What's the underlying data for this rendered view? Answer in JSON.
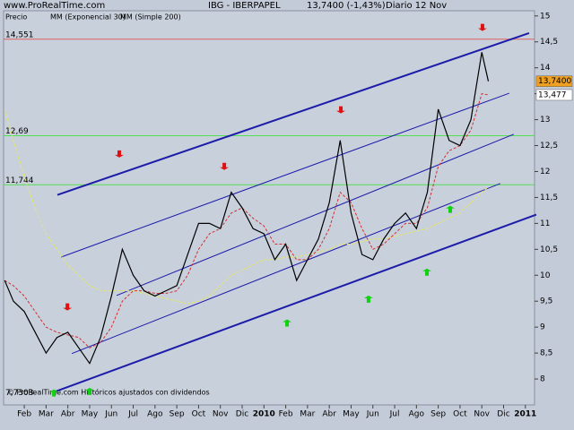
{
  "chart_data": {
    "type": "line",
    "site": "www.ProRealTime.com",
    "title": "IBG - IBERPAPEL",
    "quote": "13,7400 (-1,43%)",
    "period": "Diario  12 Nov",
    "footer": "© ProRealTime.com Históricos ajustados con dividendos",
    "legend_label": "Precio",
    "xlim": [
      -0.95,
      23.42
    ],
    "ylim": [
      7.5,
      15.1
    ],
    "xticks": [
      {
        "value": 0,
        "label": "Feb"
      },
      {
        "value": 1,
        "label": "Mar"
      },
      {
        "value": 2,
        "label": "Abr"
      },
      {
        "value": 3,
        "label": "May"
      },
      {
        "value": 4,
        "label": "Jun"
      },
      {
        "value": 5,
        "label": "Jul"
      },
      {
        "value": 6,
        "label": "Ago"
      },
      {
        "value": 7,
        "label": "Sep"
      },
      {
        "value": 8,
        "label": "Oct"
      },
      {
        "value": 9,
        "label": "Nov"
      },
      {
        "value": 10,
        "label": "Dic"
      },
      {
        "value": 11,
        "label": "2010"
      },
      {
        "value": 12,
        "label": "Feb"
      },
      {
        "value": 13,
        "label": "Mar"
      },
      {
        "value": 14,
        "label": "Abr"
      },
      {
        "value": 15,
        "label": "May"
      },
      {
        "value": 16,
        "label": "Jun"
      },
      {
        "value": 17,
        "label": "Jul"
      },
      {
        "value": 18,
        "label": "Ago"
      },
      {
        "value": 19,
        "label": "Sep"
      },
      {
        "value": 20,
        "label": "Oct"
      },
      {
        "value": 21,
        "label": "Nov"
      },
      {
        "value": 22,
        "label": "Dic"
      },
      {
        "value": 23,
        "label": "2011"
      }
    ],
    "yticks": [
      {
        "value": 15,
        "label": "15"
      },
      {
        "value": 14.5,
        "label": "14,5"
      },
      {
        "value": 14,
        "label": "14"
      },
      {
        "value": 13.5,
        "label": "13,5"
      },
      {
        "value": 13,
        "label": "13"
      },
      {
        "value": 12.5,
        "label": "12,5"
      },
      {
        "value": 12,
        "label": "12"
      },
      {
        "value": 11.5,
        "label": "11,5"
      },
      {
        "value": 11,
        "label": "11"
      },
      {
        "value": 10.5,
        "label": "10,5"
      },
      {
        "value": 10,
        "label": "10"
      },
      {
        "value": 9.5,
        "label": "9,5"
      },
      {
        "value": 9,
        "label": "9"
      },
      {
        "value": 8.5,
        "label": "8,5"
      },
      {
        "value": 8,
        "label": "8"
      }
    ],
    "x": [
      -0.9,
      -0.5,
      0,
      0.5,
      1,
      1.5,
      2,
      2.5,
      3,
      3.5,
      4,
      4.5,
      5,
      5.5,
      6,
      6.5,
      7,
      7.5,
      8,
      8.5,
      9,
      9.5,
      10,
      10.5,
      11,
      11.5,
      12,
      12.5,
      13,
      13.5,
      14,
      14.5,
      15,
      15.5,
      16,
      16.5,
      17,
      17.5,
      18,
      18.5,
      19,
      19.5,
      20,
      20.5,
      21,
      21.3
    ],
    "series": [
      {
        "name": "MM (Simple 200)",
        "color": "#e8e85a",
        "dash": true,
        "values": [
          13.2,
          12.6,
          11.9,
          11.3,
          10.8,
          10.5,
          10.2,
          10.0,
          9.8,
          9.7,
          9.7,
          9.7,
          9.7,
          9.65,
          9.6,
          9.55,
          9.5,
          9.45,
          9.5,
          9.6,
          9.8,
          10.0,
          10.1,
          10.2,
          10.3,
          10.3,
          10.35,
          10.35,
          10.4,
          10.45,
          10.5,
          10.6,
          10.6,
          10.65,
          10.7,
          10.7,
          10.75,
          10.8,
          10.85,
          10.9,
          11.0,
          11.1,
          11.2,
          11.4,
          11.6,
          11.7
        ]
      },
      {
        "name": "MM (Exponencial 30)",
        "color": "#d03030",
        "dash": true,
        "values": [
          9.9,
          9.8,
          9.6,
          9.3,
          9.0,
          8.9,
          8.85,
          8.8,
          8.6,
          8.7,
          9.0,
          9.5,
          9.7,
          9.7,
          9.65,
          9.65,
          9.7,
          10.0,
          10.5,
          10.8,
          10.9,
          11.2,
          11.3,
          11.1,
          10.95,
          10.6,
          10.6,
          10.3,
          10.3,
          10.5,
          10.9,
          11.6,
          11.4,
          10.9,
          10.5,
          10.6,
          10.8,
          11.0,
          11.0,
          11.3,
          12.1,
          12.4,
          12.5,
          12.8,
          13.5,
          13.477
        ]
      },
      {
        "name": "IBG",
        "color": "#000000",
        "dash": false,
        "values": [
          9.9,
          9.5,
          9.3,
          8.9,
          8.5,
          8.8,
          8.9,
          8.6,
          8.3,
          8.8,
          9.6,
          10.5,
          10.0,
          9.7,
          9.6,
          9.7,
          9.8,
          10.4,
          11.0,
          11.0,
          10.9,
          11.6,
          11.3,
          10.9,
          10.8,
          10.3,
          10.6,
          9.9,
          10.3,
          10.7,
          11.4,
          12.6,
          11.2,
          10.4,
          10.3,
          10.7,
          11.0,
          11.2,
          10.9,
          11.6,
          13.2,
          12.6,
          12.5,
          13.0,
          14.3,
          13.74
        ]
      }
    ],
    "channels": [
      {
        "x": [
          1.52,
          23.17
        ],
        "y": [
          11.55,
          14.67
        ],
        "color": "#1c1ca8",
        "width": 2
      },
      {
        "x": [
          1.69,
          22.26
        ],
        "y": [
          10.35,
          13.51
        ],
        "color": "#1c1ca8",
        "width": 1
      },
      {
        "x": [
          4.24,
          22.47
        ],
        "y": [
          9.61,
          12.72
        ],
        "color": "#1c1ca8",
        "width": 1
      },
      {
        "x": [
          2.18,
          21.85
        ],
        "y": [
          8.49,
          11.77
        ],
        "color": "#1c1ca8",
        "width": 1
      },
      {
        "x": [
          1.44,
          23.5
        ],
        "y": [
          7.76,
          11.17
        ],
        "color": "#1c1ca8",
        "width": 2
      }
    ],
    "levels": [
      {
        "value": 14.551,
        "label": "14,551",
        "color": "#e06060"
      },
      {
        "value": 12.69,
        "label": "12,69",
        "color": "#50e050"
      },
      {
        "value": 11.744,
        "label": "11,744",
        "color": "#50e050"
      }
    ],
    "low_label": {
      "value": 7.7303,
      "label": "7,7303"
    },
    "price_boxes": [
      {
        "value": 13.74,
        "label": "13,7400",
        "color": "#f0a020",
        "text_color": "#000000"
      },
      {
        "value": 13.477,
        "label": "13,477",
        "color": "#ffffff",
        "text_color": "#d03030"
      }
    ],
    "red_arrows": {
      "x": [
        4.36,
        9.18,
        14.53,
        21.03,
        1.98
      ],
      "y": [
        12.27,
        12.03,
        13.12,
        14.71,
        9.32
      ],
      "color": "#e01010"
    },
    "green_arrows": {
      "x": [
        1.36,
        3.0,
        12.06,
        15.8,
        18.48,
        19.55
      ],
      "y": [
        7.8,
        7.83,
        9.15,
        9.61,
        10.13,
        11.34
      ],
      "color": "#10d010"
    }
  }
}
